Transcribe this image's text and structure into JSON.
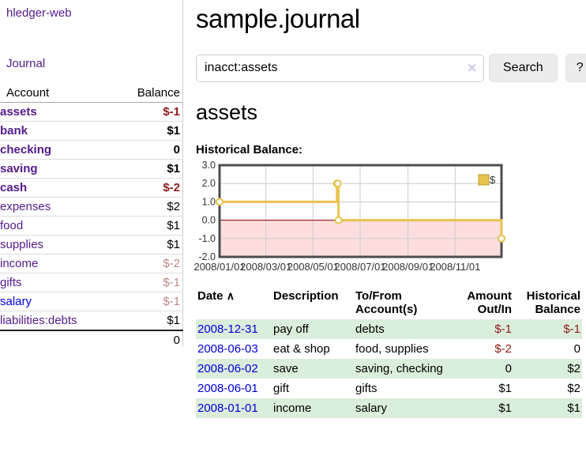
{
  "sidebar": {
    "brand": "hledger-web",
    "nav": {
      "journal": "Journal"
    },
    "table": {
      "account_header": "Account",
      "balance_header": "Balance"
    },
    "accounts": [
      {
        "name": "assets",
        "depth": 1,
        "bold": true,
        "balance": "$-1",
        "balance_style": "neg-strong",
        "link_style": "purple"
      },
      {
        "name": "bank",
        "depth": 2,
        "bold": true,
        "balance": "$1",
        "balance_style": "pos",
        "link_style": "purple"
      },
      {
        "name": "checking",
        "depth": 3,
        "bold": true,
        "balance": "0",
        "balance_style": "pos",
        "link_style": "purple"
      },
      {
        "name": "saving",
        "depth": 3,
        "bold": true,
        "balance": "$1",
        "balance_style": "pos",
        "link_style": "purple"
      },
      {
        "name": "cash",
        "depth": 2,
        "bold": true,
        "balance": "$-2",
        "balance_style": "neg-strong",
        "link_style": "purple"
      },
      {
        "name": "expenses",
        "depth": 1,
        "bold": false,
        "balance": "$2",
        "balance_style": "pos",
        "link_style": "purple"
      },
      {
        "name": "food",
        "depth": 2,
        "bold": false,
        "balance": "$1",
        "balance_style": "pos",
        "link_style": "purple"
      },
      {
        "name": "supplies",
        "depth": 2,
        "bold": false,
        "balance": "$1",
        "balance_style": "pos",
        "link_style": "purple"
      },
      {
        "name": "income",
        "depth": 1,
        "bold": false,
        "balance": "$-2",
        "balance_style": "neg-soft",
        "link_style": "purple"
      },
      {
        "name": "gifts",
        "depth": 2,
        "bold": false,
        "balance": "$-1",
        "balance_style": "neg-soft",
        "link_style": "purple"
      },
      {
        "name": "salary",
        "depth": 2,
        "bold": false,
        "balance": "$-1",
        "balance_style": "neg-soft",
        "link_style": "blue"
      },
      {
        "name": "liabilities:debts",
        "depth": 1,
        "bold": false,
        "balance": "$1",
        "balance_style": "pos",
        "link_style": "purple",
        "last": true
      }
    ],
    "total": "0"
  },
  "header": {
    "title": "sample.journal"
  },
  "search": {
    "value": "inacct:assets",
    "clear_icon": "✕",
    "button_label": "Search",
    "help_label": "?"
  },
  "account_page": {
    "title": "assets",
    "chart_label": "Historical Balance:"
  },
  "chart_data": {
    "type": "line",
    "title": "Historical Balance",
    "legend": [
      {
        "label": "$",
        "color": "#e7c44d"
      }
    ],
    "legend_position": "top-right",
    "grid": true,
    "x_start": "2008-01-01",
    "x_end": "2008-12-31",
    "ylim": [
      -2.0,
      3.0
    ],
    "yticks": [
      "3.0",
      "2.0",
      "1.0",
      "0.0",
      "-1.0",
      "-2.0"
    ],
    "ytick_values": [
      3,
      2,
      1,
      0,
      -1,
      -2
    ],
    "xticks": [
      {
        "label": "2008/01/01",
        "date": "2008-01-01"
      },
      {
        "label": "2008/03/01",
        "date": "2008-03-01"
      },
      {
        "label": "2008/05/01",
        "date": "2008-05-01"
      },
      {
        "label": "2008/07/01",
        "date": "2008-07-01"
      },
      {
        "label": "2008/09/01",
        "date": "2008-09-01"
      },
      {
        "label": "2008/11/01",
        "date": "2008-11-01"
      }
    ],
    "series": [
      {
        "name": "$",
        "color": "#e7c44d",
        "step": true,
        "points": [
          {
            "date": "2008-01-01",
            "value": 1
          },
          {
            "date": "2008-06-01",
            "value": 2
          },
          {
            "date": "2008-06-02",
            "value": 2
          },
          {
            "date": "2008-06-03",
            "value": 0
          },
          {
            "date": "2008-12-31",
            "value": -1
          }
        ]
      }
    ],
    "negative_area_color": "#fcdede",
    "zero_line_color": "#8b0000",
    "border_color": "#4d4d4d",
    "gridline_color": "#cccccc"
  },
  "register": {
    "columns": [
      "Date",
      "Description",
      "To/From Account(s)",
      "Amount Out/In",
      "Historical Balance"
    ],
    "sort_icon": "∧",
    "rows": [
      {
        "date": "2008-12-31",
        "description": "pay off",
        "accounts": "debts",
        "amount": "$-1",
        "amount_negative": true,
        "balance": "$-1",
        "balance_negative": true
      },
      {
        "date": "2008-06-03",
        "description": "eat & shop",
        "accounts": "food, supplies",
        "amount": "$-2",
        "amount_negative": true,
        "balance": "0",
        "balance_negative": false
      },
      {
        "date": "2008-06-02",
        "description": "save",
        "accounts": "saving, checking",
        "amount": "0",
        "amount_negative": false,
        "balance": "$2",
        "balance_negative": false
      },
      {
        "date": "2008-06-01",
        "description": "gift",
        "accounts": "gifts",
        "amount": "$1",
        "amount_negative": false,
        "balance": "$2",
        "balance_negative": false
      },
      {
        "date": "2008-01-01",
        "description": "income",
        "accounts": "salary",
        "amount": "$1",
        "amount_negative": false,
        "balance": "$1",
        "balance_negative": false
      }
    ]
  },
  "colors": {
    "link_purple": "#541a8b",
    "link_blue": "#0000db",
    "negative_strong": "#8f1a1a",
    "negative_soft": "#c08484",
    "row_stripe_green": "#dbeddb",
    "series_gold": "#e7c44d"
  }
}
